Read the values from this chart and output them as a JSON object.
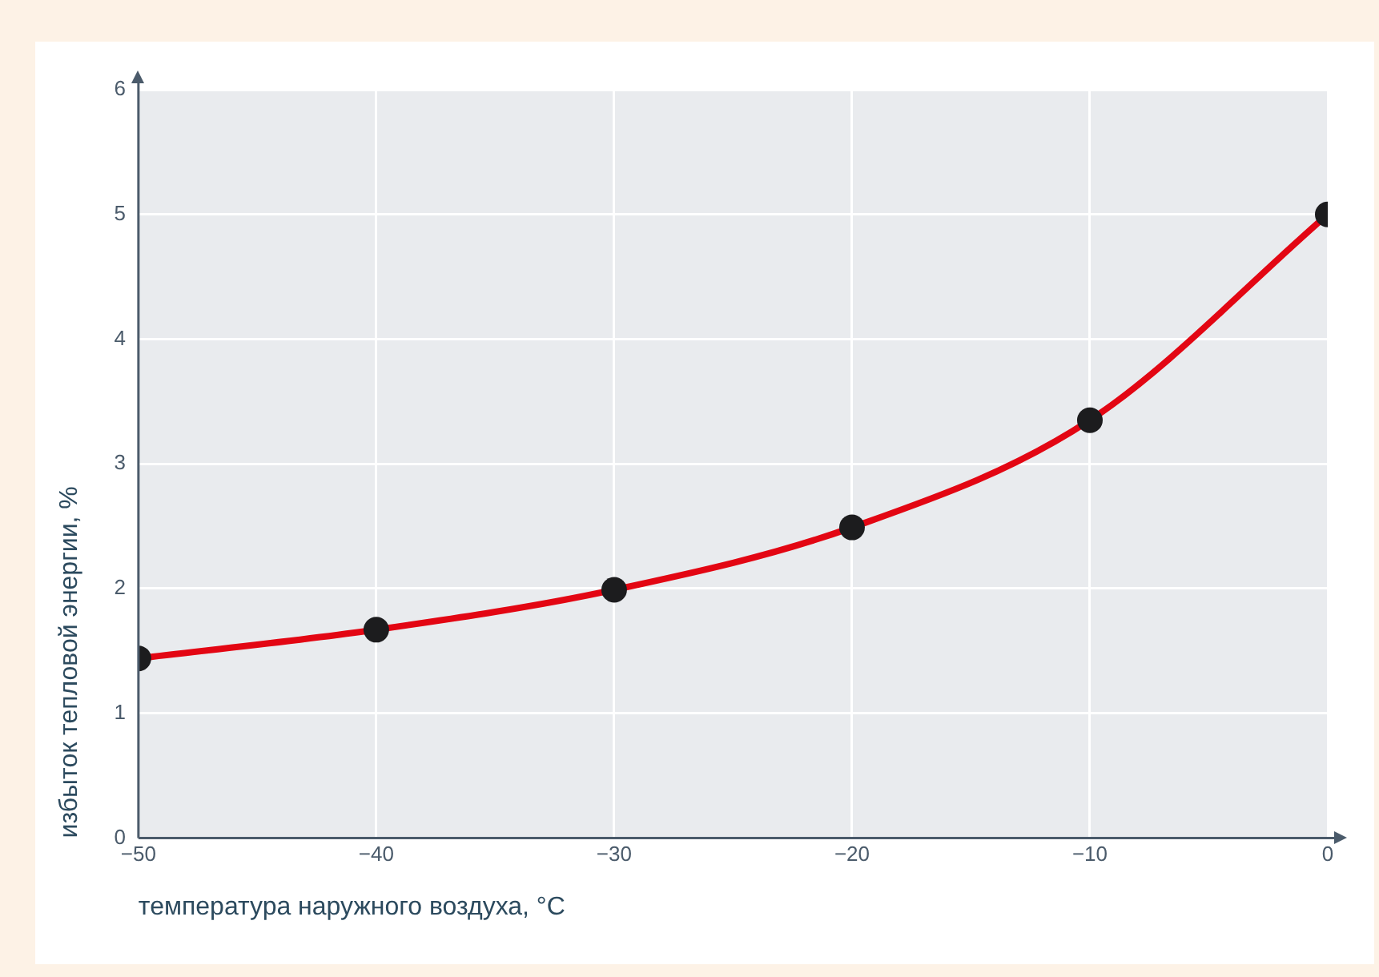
{
  "chart_data": {
    "type": "line",
    "xlabel": "температура наружного воздуха, °C",
    "ylabel": "избыток тепловой энергии, %",
    "x": [
      -50,
      -40,
      -30,
      -20,
      -10,
      0
    ],
    "series": [
      {
        "color": "#e30613",
        "values": [
          1.44,
          1.67,
          1.99,
          2.49,
          3.35,
          5.0
        ]
      }
    ],
    "xlim": [
      -50,
      0
    ],
    "xticks": [
      {
        "value": -50,
        "label": "−50"
      },
      {
        "value": -40,
        "label": "−40"
      },
      {
        "value": -30,
        "label": "−30"
      },
      {
        "value": -20,
        "label": "−20"
      },
      {
        "value": -10,
        "label": "−10"
      },
      0
    ],
    "ylim": [
      0,
      6
    ],
    "yticks": [
      0,
      1,
      2,
      3,
      4,
      5,
      6
    ],
    "grid": true,
    "legend": false,
    "marker": "circle",
    "line_style": "solid"
  }
}
